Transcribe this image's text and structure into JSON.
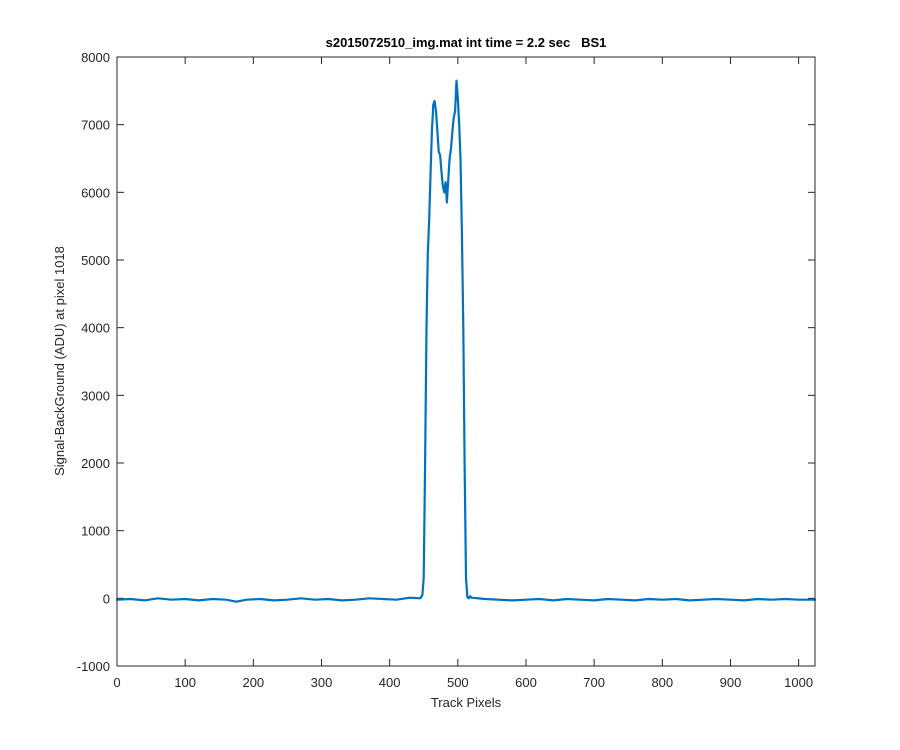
{
  "chart_data": {
    "type": "line",
    "title": "s2015072510_img.mat int time = 2.2 sec   BS1",
    "xlabel": "Track Pixels",
    "ylabel": "Signal-BackGround (ADU) at pixel 1018",
    "xlim": [
      0,
      1024
    ],
    "ylim": [
      -1000,
      8000
    ],
    "xticks": [
      0,
      100,
      200,
      300,
      400,
      500,
      600,
      700,
      800,
      900,
      1000
    ],
    "yticks": [
      -1000,
      0,
      1000,
      2000,
      3000,
      4000,
      5000,
      6000,
      7000,
      8000
    ],
    "grid": false,
    "box": true,
    "series": [
      {
        "color": "#0072BD",
        "x": [
          0,
          20,
          40,
          60,
          80,
          100,
          120,
          140,
          160,
          175,
          190,
          210,
          230,
          250,
          270,
          290,
          310,
          330,
          350,
          370,
          390,
          410,
          430,
          445,
          448,
          450,
          452,
          454,
          456,
          458,
          460,
          462,
          464,
          466,
          468,
          470,
          472,
          474,
          476,
          478,
          480,
          482,
          484,
          486,
          488,
          490,
          492,
          494,
          496,
          498,
          500,
          502,
          504,
          506,
          508,
          510,
          512,
          514,
          516,
          518,
          520,
          540,
          560,
          580,
          600,
          620,
          640,
          660,
          680,
          700,
          720,
          740,
          760,
          780,
          800,
          820,
          840,
          860,
          880,
          900,
          920,
          940,
          960,
          980,
          1000,
          1024
        ],
        "y": [
          -20,
          -10,
          -30,
          0,
          -20,
          -10,
          -30,
          -10,
          -20,
          -50,
          -20,
          -10,
          -30,
          -20,
          0,
          -20,
          -10,
          -30,
          -20,
          0,
          -10,
          -20,
          10,
          0,
          50,
          300,
          2000,
          4000,
          5100,
          5600,
          6300,
          6900,
          7300,
          7350,
          7200,
          6900,
          6600,
          6550,
          6300,
          6100,
          6000,
          6150,
          5850,
          6200,
          6500,
          6650,
          6900,
          7100,
          7200,
          7650,
          7400,
          7000,
          6500,
          5400,
          4000,
          2000,
          300,
          20,
          0,
          30,
          10,
          -10,
          -20,
          -30,
          -20,
          -10,
          -30,
          -10,
          -20,
          -30,
          -10,
          -20,
          -30,
          -10,
          -20,
          -10,
          -30,
          -20,
          -10,
          -20,
          -30,
          -10,
          -20,
          -10,
          -20,
          -20
        ]
      }
    ]
  }
}
